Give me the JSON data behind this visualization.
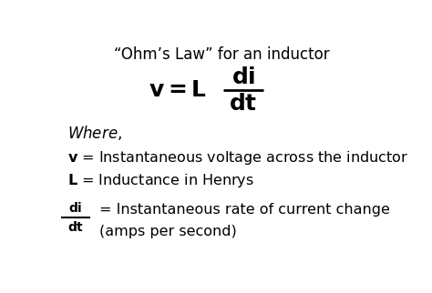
{
  "title": "“Ohm’s Law” for an inductor",
  "bg_color": "#ffffff",
  "text_color": "#000000",
  "fig_width": 4.74,
  "fig_height": 3.22,
  "dpi": 100
}
